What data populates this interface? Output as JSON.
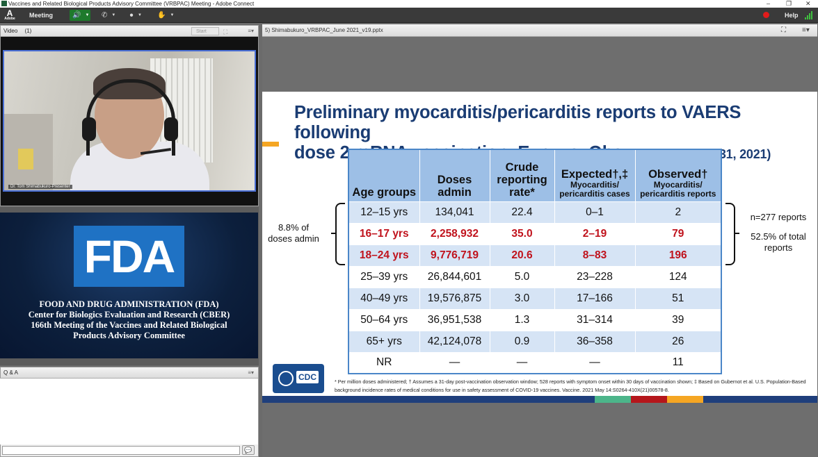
{
  "window": {
    "title": "Vaccines and Related Biological Products Advisory Committee (VRBPAC) Meeting - Adobe Connect",
    "controls": [
      "–",
      "❐",
      "✕"
    ]
  },
  "toolbar": {
    "logo_label": "A",
    "logo_sub": "Adobe",
    "meeting_menu": "Meeting",
    "help_label": "Help",
    "icons": [
      "speaker-icon",
      "phone-icon",
      "user-icon",
      "raise-hand-icon"
    ],
    "record_color": "#e21b1b",
    "accent_color": "#1e7a2c"
  },
  "video_pod": {
    "title": "Video",
    "count": "(1)",
    "start_label": "Start",
    "presenter_label": "Dr. Tom Shimabukuro-Presenter"
  },
  "fda_panel": {
    "logo": "FDA",
    "lines": [
      "FOOD AND DRUG ADMINISTRATION (FDA)",
      "Center for Biologics Evaluation and Research (CBER)",
      "166th  Meeting of the Vaccines and Related Biological",
      "Products Advisory Committee"
    ]
  },
  "qa_pod": {
    "title": "Q & A"
  },
  "share_pod": {
    "title": "5) Shimabukuro_VRBPAC_June 2021_v19.pptx"
  },
  "slide": {
    "title_line1": "Preliminary myocarditis/pericarditis reports to VAERS following",
    "title_line2": "dose 2 mRNA vaccination, Exp. vs. Obs.",
    "title_suffix": "(data thru May 31, 2021)",
    "headers": {
      "age": "Age groups",
      "doses_1": "Doses",
      "doses_2": "admin",
      "crude_1": "Crude",
      "crude_2": "reporting",
      "crude_3": "rate*",
      "expected_1": "Expected†,‡",
      "expected_2": "Myocarditis/",
      "expected_3": "pericarditis cases",
      "observed_1": "Observed†",
      "observed_2": "Myocarditis/",
      "observed_3": "pericarditis reports"
    },
    "rows": [
      {
        "age": "12–15 yrs",
        "doses": "134,041",
        "rate": "22.4",
        "expected": "0–1",
        "observed": "2"
      },
      {
        "age": "16–17 yrs",
        "doses": "2,258,932",
        "rate": "35.0",
        "expected": "2–19",
        "observed": "79"
      },
      {
        "age": "18–24 yrs",
        "doses": "9,776,719",
        "rate": "20.6",
        "expected": "8–83",
        "observed": "196"
      },
      {
        "age": "25–39 yrs",
        "doses": "26,844,601",
        "rate": "5.0",
        "expected": "23–228",
        "observed": "124"
      },
      {
        "age": "40–49 yrs",
        "doses": "19,576,875",
        "rate": "3.0",
        "expected": "17–166",
        "observed": "51"
      },
      {
        "age": "50–64 yrs",
        "doses": "36,951,538",
        "rate": "1.3",
        "expected": "31–314",
        "observed": "39"
      },
      {
        "age": "65+ yrs",
        "doses": "42,124,078",
        "rate": "0.9",
        "expected": "36–358",
        "observed": "26"
      },
      {
        "age": "NR",
        "doses": "—",
        "rate": "—",
        "expected": "—",
        "observed": "11"
      }
    ],
    "note_left_1": "8.8% of",
    "note_left_2": "doses admin",
    "note_right_1": "n=277 reports",
    "note_right_2": "52.5% of total",
    "note_right_3": "reports",
    "cdc_label": "CDC",
    "footnote": "* Per million doses administered; † Assumes a 31-day post-vaccination observation window; 528 reports with symptom onset within 30 days of vaccination shown; ‡ Based on Gubernot et al. U.S. Population-Based background incidence rates of medical conditions for use in safety assessment of COVID-19 vaccines. Vaccine. 2021 May 14:S0264-410X(21)00578-8.",
    "highlight_color": "#c0121c",
    "title_color": "#1a3c73"
  }
}
